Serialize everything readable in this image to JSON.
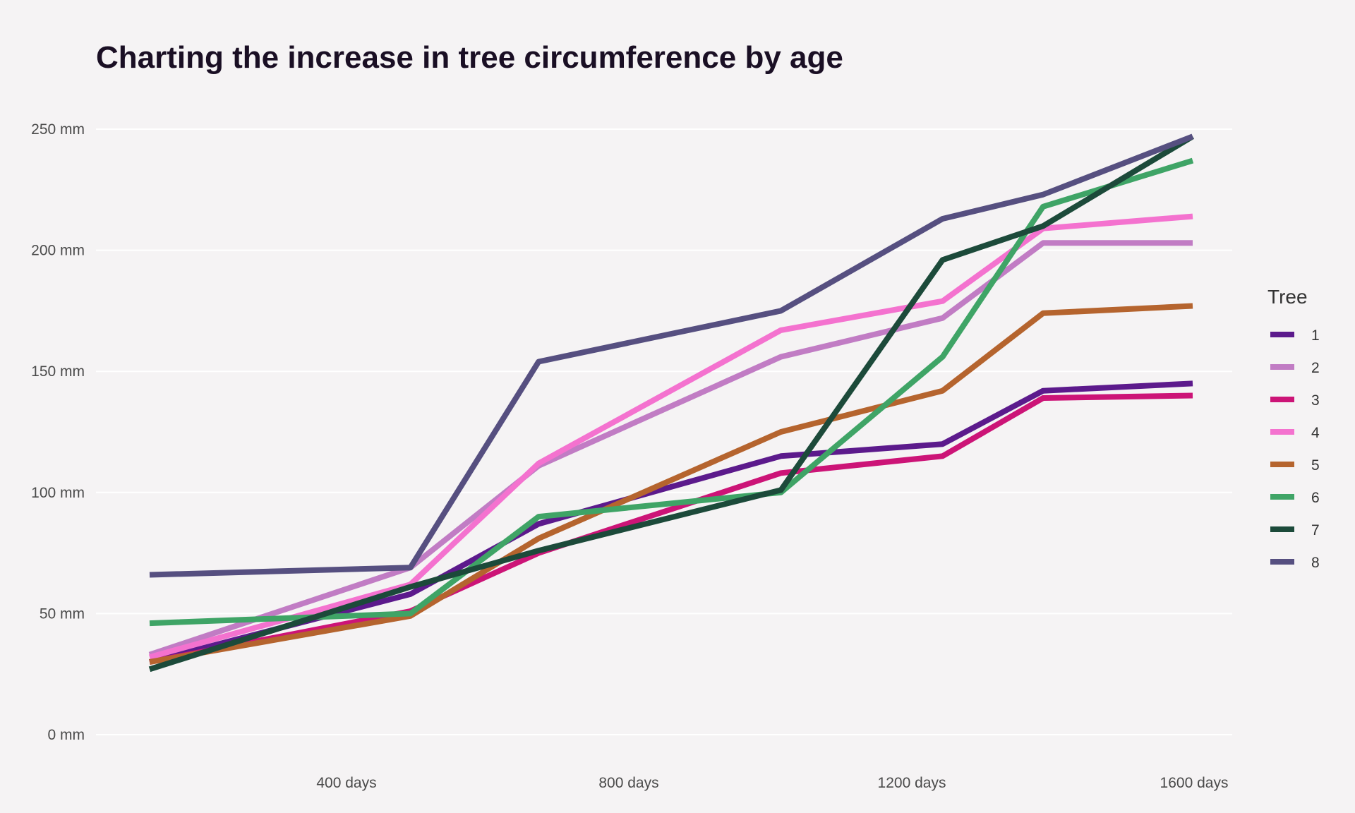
{
  "chart_data": {
    "type": "line",
    "title": "Charting the increase in tree circumference by age",
    "xlabel": "",
    "ylabel": "",
    "x": [
      118,
      484,
      664,
      1004,
      1231,
      1372,
      1582
    ],
    "xlim": [
      118,
      1582
    ],
    "ylim": [
      0,
      250
    ],
    "x_ticks": [
      400,
      800,
      1200,
      1600
    ],
    "x_tick_labels": [
      "400 days",
      "800 days",
      "1200 days",
      "1600 days"
    ],
    "y_ticks": [
      0,
      50,
      100,
      150,
      200,
      250
    ],
    "y_tick_labels": [
      "0 mm",
      "50 mm",
      "100 mm",
      "150 mm",
      "200 mm",
      "250 mm"
    ],
    "grid": true,
    "legend_title": "Tree",
    "legend_position": "right",
    "series": [
      {
        "name": "1",
        "color": "#5c1a8c",
        "values": [
          30,
          58,
          87,
          115,
          120,
          142,
          145
        ]
      },
      {
        "name": "2",
        "color": "#c17cc4",
        "values": [
          33,
          69,
          111,
          156,
          172,
          203,
          203
        ]
      },
      {
        "name": "3",
        "color": "#cc1477",
        "values": [
          30,
          51,
          75,
          108,
          115,
          139,
          140
        ]
      },
      {
        "name": "4",
        "color": "#f472cf",
        "values": [
          32,
          62,
          112,
          167,
          179,
          209,
          214
        ]
      },
      {
        "name": "5",
        "color": "#b5642e",
        "values": [
          30,
          49,
          81,
          125,
          142,
          174,
          177
        ]
      },
      {
        "name": "6",
        "color": "#3fa466",
        "values": [
          46,
          50,
          90,
          100,
          156,
          218,
          237
        ]
      },
      {
        "name": "7",
        "color": "#1c4a3a",
        "values": [
          27,
          61,
          76,
          101,
          196,
          210,
          247
        ]
      },
      {
        "name": "8",
        "color": "#564f80",
        "values": [
          66,
          69,
          154,
          175,
          213,
          223,
          247
        ]
      }
    ]
  }
}
